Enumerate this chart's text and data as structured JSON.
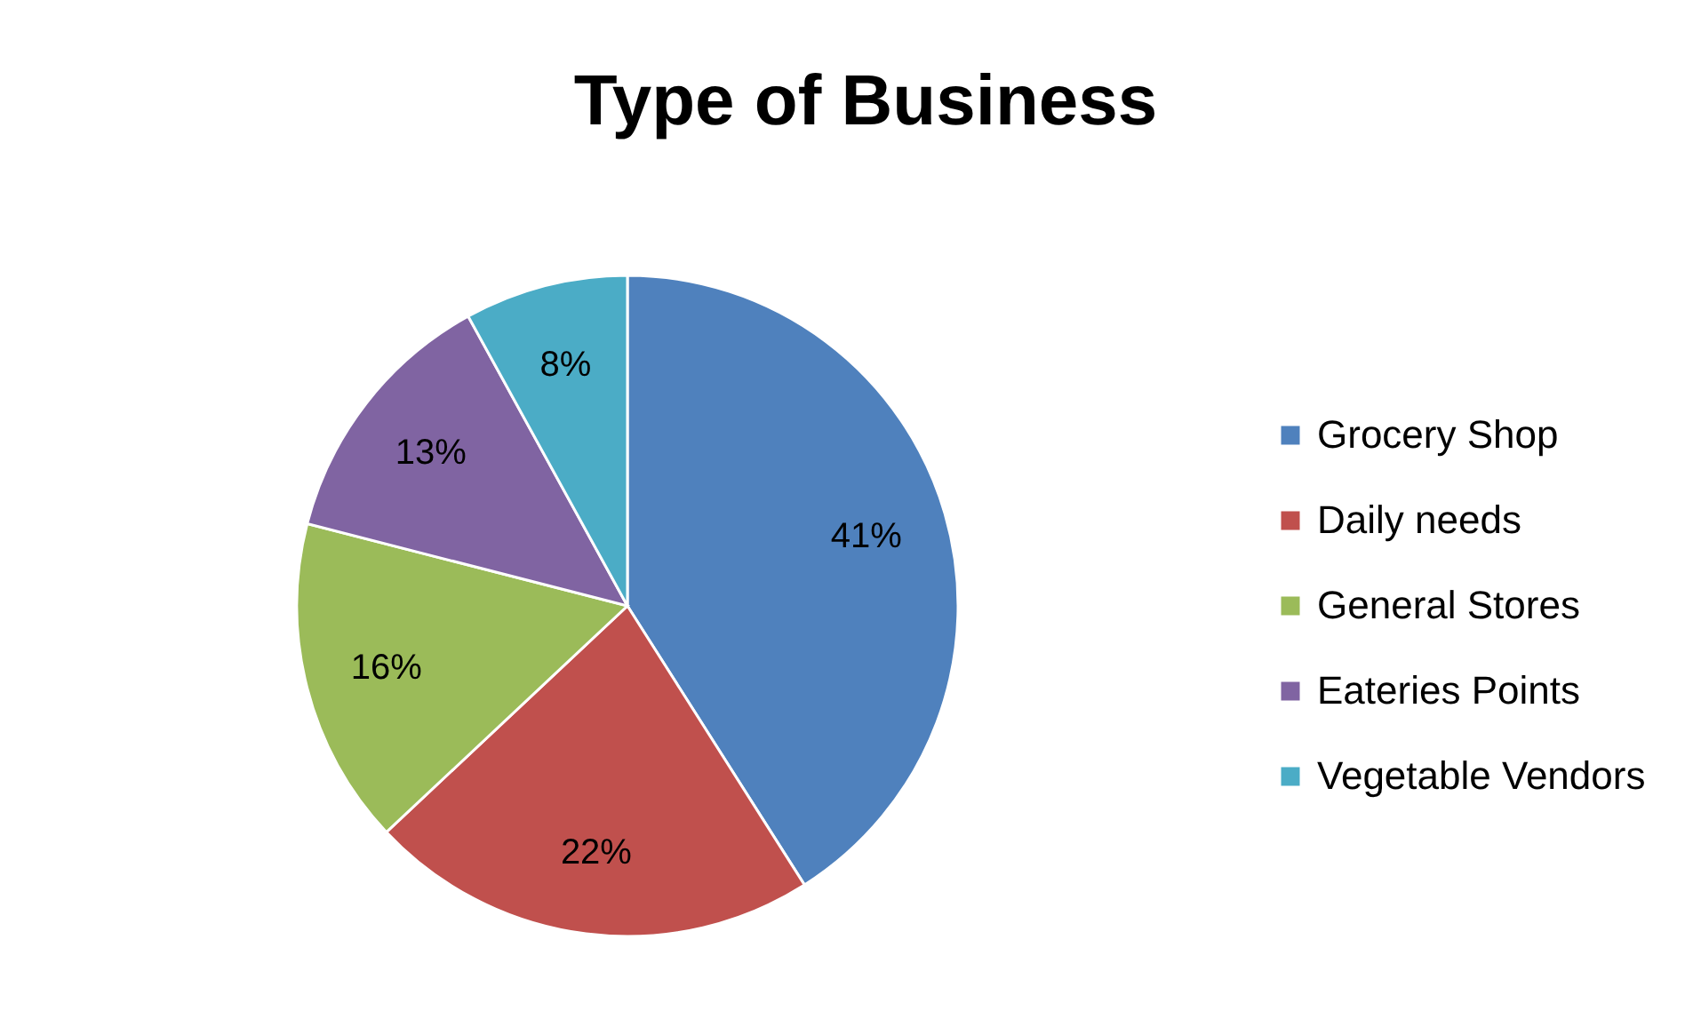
{
  "chart_data": {
    "type": "pie",
    "title": "Type of Business",
    "categories": [
      "Grocery Shop",
      "Daily needs",
      "General Stores",
      "Eateries Points",
      "Vegetable Vendors"
    ],
    "values": [
      41,
      22,
      16,
      13,
      8
    ],
    "colors": [
      "#4f81bd",
      "#c0504d",
      "#9bbb59",
      "#8064a2",
      "#4bacc6"
    ],
    "value_labels": [
      "41%",
      "22%",
      "16%",
      "13%",
      "8%"
    ],
    "legend": "right"
  }
}
